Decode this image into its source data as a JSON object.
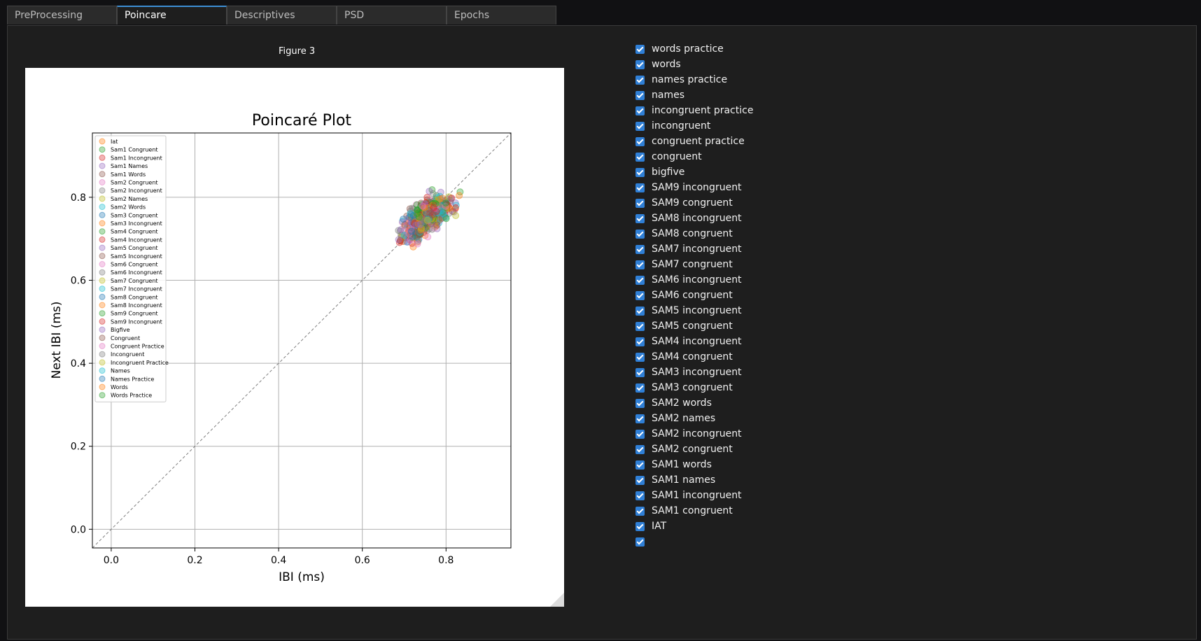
{
  "tabs": [
    {
      "label": "PreProcessing",
      "active": false
    },
    {
      "label": "Poincare",
      "active": true
    },
    {
      "label": "Descriptives",
      "active": false
    },
    {
      "label": "PSD",
      "active": false
    },
    {
      "label": "Epochs",
      "active": false
    }
  ],
  "figure": {
    "label": "Figure 3"
  },
  "chart_data": {
    "type": "scatter",
    "title": "Poincaré Plot",
    "xlabel": "IBI (ms)",
    "ylabel": "Next IBI (ms)",
    "xlim": [
      -0.045,
      0.955
    ],
    "ylim": [
      -0.045,
      0.955
    ],
    "xticks": [
      "0.0",
      "0.2",
      "0.4",
      "0.6",
      "0.8"
    ],
    "yticks": [
      "0.0",
      "0.2",
      "0.4",
      "0.6",
      "0.8"
    ],
    "grid": true,
    "identity_line": true,
    "legend_placement": "top-left",
    "cluster": {
      "x_center": 0.75,
      "y_center": 0.75,
      "x_range": [
        0.63,
        0.92
      ],
      "y_range": [
        0.63,
        0.92
      ]
    },
    "series": [
      {
        "name": "Iat",
        "color": "#ff7f0e"
      },
      {
        "name": "Sam1 Congruent",
        "color": "#2ca02c"
      },
      {
        "name": "Sam1 Incongruent",
        "color": "#d62728"
      },
      {
        "name": "Sam1 Names",
        "color": "#9467bd"
      },
      {
        "name": "Sam1 Words",
        "color": "#8c564b"
      },
      {
        "name": "Sam2 Congruent",
        "color": "#e377c2"
      },
      {
        "name": "Sam2 Incongruent",
        "color": "#7f7f7f"
      },
      {
        "name": "Sam2 Names",
        "color": "#bcbd22"
      },
      {
        "name": "Sam2 Words",
        "color": "#17becf"
      },
      {
        "name": "Sam3 Congruent",
        "color": "#1f77b4"
      },
      {
        "name": "Sam3 Incongruent",
        "color": "#ff7f0e"
      },
      {
        "name": "Sam4 Congruent",
        "color": "#2ca02c"
      },
      {
        "name": "Sam4 Incongruent",
        "color": "#d62728"
      },
      {
        "name": "Sam5 Congruent",
        "color": "#9467bd"
      },
      {
        "name": "Sam5 Incongruent",
        "color": "#8c564b"
      },
      {
        "name": "Sam6 Congruent",
        "color": "#e377c2"
      },
      {
        "name": "Sam6 Incongruent",
        "color": "#7f7f7f"
      },
      {
        "name": "Sam7 Congruent",
        "color": "#bcbd22"
      },
      {
        "name": "Sam7 Incongruent",
        "color": "#17becf"
      },
      {
        "name": "Sam8 Congruent",
        "color": "#1f77b4"
      },
      {
        "name": "Sam8 Incongruent",
        "color": "#ff7f0e"
      },
      {
        "name": "Sam9 Congruent",
        "color": "#2ca02c"
      },
      {
        "name": "Sam9 Incongruent",
        "color": "#d62728"
      },
      {
        "name": "Bigfive",
        "color": "#9467bd"
      },
      {
        "name": "Congruent",
        "color": "#8c564b"
      },
      {
        "name": "Congruent Practice",
        "color": "#e377c2"
      },
      {
        "name": "Incongruent",
        "color": "#7f7f7f"
      },
      {
        "name": "Incongruent Practice",
        "color": "#bcbd22"
      },
      {
        "name": "Names",
        "color": "#17becf"
      },
      {
        "name": "Names Practice",
        "color": "#1f77b4"
      },
      {
        "name": "Words",
        "color": "#ff7f0e"
      },
      {
        "name": "Words Practice",
        "color": "#2ca02c"
      }
    ]
  },
  "checkboxes": [
    {
      "label": "words practice",
      "checked": true
    },
    {
      "label": "words",
      "checked": true
    },
    {
      "label": "names practice",
      "checked": true
    },
    {
      "label": "names",
      "checked": true
    },
    {
      "label": "incongruent practice",
      "checked": true
    },
    {
      "label": "incongruent",
      "checked": true
    },
    {
      "label": "congruent practice",
      "checked": true
    },
    {
      "label": "congruent",
      "checked": true
    },
    {
      "label": "bigfive",
      "checked": true
    },
    {
      "label": "SAM9 incongruent",
      "checked": true
    },
    {
      "label": "SAM9 congruent",
      "checked": true
    },
    {
      "label": "SAM8 incongruent",
      "checked": true
    },
    {
      "label": "SAM8 congruent",
      "checked": true
    },
    {
      "label": "SAM7 incongruent",
      "checked": true
    },
    {
      "label": "SAM7 congruent",
      "checked": true
    },
    {
      "label": "SAM6 incongruent",
      "checked": true
    },
    {
      "label": "SAM6 congruent",
      "checked": true
    },
    {
      "label": "SAM5 incongruent",
      "checked": true
    },
    {
      "label": "SAM5 congruent",
      "checked": true
    },
    {
      "label": "SAM4 incongruent",
      "checked": true
    },
    {
      "label": "SAM4 congruent",
      "checked": true
    },
    {
      "label": "SAM3 incongruent",
      "checked": true
    },
    {
      "label": "SAM3 congruent",
      "checked": true
    },
    {
      "label": "SAM2 words",
      "checked": true
    },
    {
      "label": "SAM2 names",
      "checked": true
    },
    {
      "label": "SAM2 incongruent",
      "checked": true
    },
    {
      "label": "SAM2 congruent",
      "checked": true
    },
    {
      "label": "SAM1 words",
      "checked": true
    },
    {
      "label": "SAM1 names",
      "checked": true
    },
    {
      "label": "SAM1 incongruent",
      "checked": true
    },
    {
      "label": "SAM1 congruent",
      "checked": true
    },
    {
      "label": "IAT",
      "checked": true
    },
    {
      "label": "",
      "checked": true
    }
  ]
}
